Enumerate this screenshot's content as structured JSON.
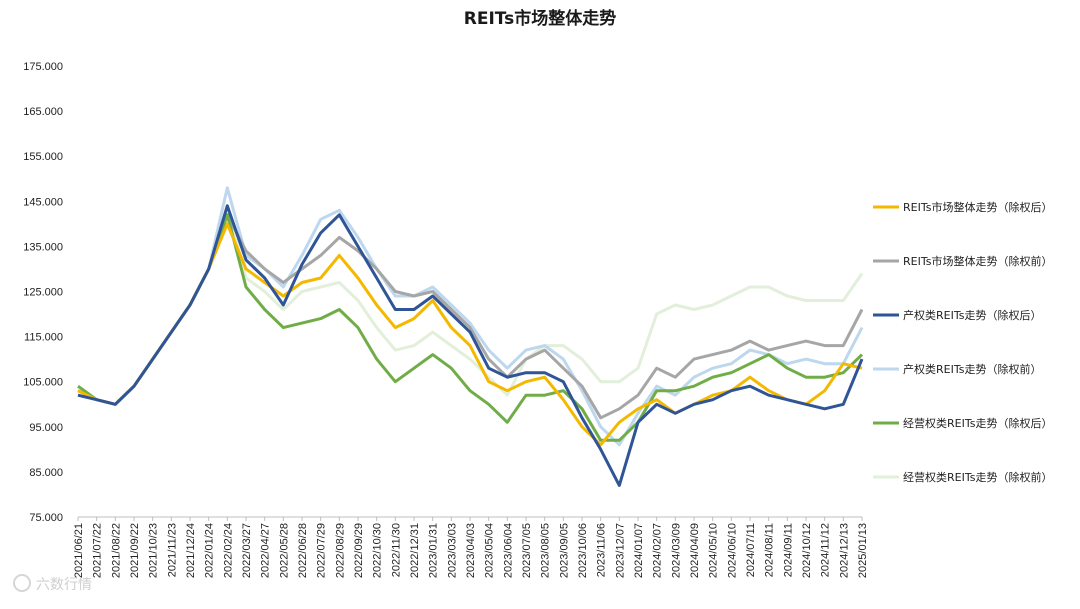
{
  "chart_data": {
    "type": "line",
    "title": "REITs市场整体走势",
    "ylim": [
      75,
      175
    ],
    "yticks": [
      "75.000",
      "85.000",
      "95.000",
      "105.000",
      "115.000",
      "125.000",
      "135.000",
      "145.000",
      "155.000",
      "165.000",
      "175.000"
    ],
    "xticks": [
      "2021/06/21",
      "2021/07/22",
      "2021/08/22",
      "2021/09/22",
      "2021/10/23",
      "2021/11/23",
      "2021/12/24",
      "2022/01/24",
      "2022/02/24",
      "2022/03/27",
      "2022/04/27",
      "2022/05/28",
      "2022/06/28",
      "2022/07/29",
      "2022/08/29",
      "2022/09/29",
      "2022/10/30",
      "2022/11/30",
      "2022/12/31",
      "2023/01/31",
      "2023/03/03",
      "2023/04/03",
      "2023/05/04",
      "2023/06/04",
      "2023/07/05",
      "2023/08/05",
      "2023/09/05",
      "2023/10/06",
      "2023/11/06",
      "2023/12/07",
      "2024/01/07",
      "2024/02/07",
      "2024/03/09",
      "2024/04/09",
      "2024/05/10",
      "2024/06/10",
      "2024/07/11",
      "2024/08/11",
      "2024/09/11",
      "2024/10/12",
      "2024/11/12",
      "2024/12/13",
      "2025/01/13"
    ],
    "grid": false,
    "legend_position": "right",
    "series": [
      {
        "name": "REITs市场整体走势（除权后）",
        "color": "#f5b800",
        "width": 3,
        "values": [
          103,
          101,
          100,
          104,
          110,
          116,
          122,
          130,
          140,
          130,
          127,
          124,
          127,
          128,
          133,
          128,
          122,
          117,
          119,
          123,
          117,
          113,
          105,
          103,
          105,
          106,
          101,
          95,
          91,
          96,
          99,
          101,
          98,
          100,
          102,
          103,
          106,
          103,
          101,
          100,
          103,
          109,
          108
        ]
      },
      {
        "name": "REITs市场整体走势（除权前）",
        "color": "#a6a6a6",
        "width": 3,
        "values": [
          103,
          101,
          100,
          104,
          110,
          116,
          122,
          130,
          142,
          134,
          130,
          127,
          130,
          133,
          137,
          134,
          130,
          125,
          124,
          125,
          121,
          117,
          110,
          106,
          110,
          112,
          108,
          104,
          97,
          99,
          102,
          108,
          106,
          110,
          111,
          112,
          114,
          112,
          113,
          114,
          113,
          113,
          121
        ]
      },
      {
        "name": "产权类REITs走势（除权后）",
        "color": "#2f5597",
        "width": 3,
        "values": [
          102,
          101,
          100,
          104,
          110,
          116,
          122,
          130,
          144,
          132,
          128,
          122,
          131,
          138,
          142,
          135,
          128,
          121,
          121,
          124,
          120,
          116,
          108,
          106,
          107,
          107,
          105,
          97,
          90,
          82,
          96,
          100,
          98,
          100,
          101,
          103,
          104,
          102,
          101,
          100,
          99,
          100,
          110
        ]
      },
      {
        "name": "产权类REITs走势（除权前）",
        "color": "#bdd7ee",
        "width": 3,
        "values": [
          102,
          101,
          100,
          104,
          110,
          116,
          122,
          130,
          148,
          133,
          130,
          126,
          133,
          141,
          143,
          137,
          130,
          124,
          124,
          126,
          122,
          118,
          112,
          108,
          112,
          113,
          110,
          103,
          95,
          91,
          98,
          104,
          102,
          106,
          108,
          109,
          112,
          111,
          109,
          110,
          109,
          109,
          117
        ]
      },
      {
        "name": "经营权类REITs走势（除权后）",
        "color": "#70ad47",
        "width": 3,
        "values": [
          104,
          101,
          100,
          104,
          110,
          116,
          122,
          130,
          142,
          126,
          121,
          117,
          118,
          119,
          121,
          117,
          110,
          105,
          108,
          111,
          108,
          103,
          100,
          96,
          102,
          102,
          103,
          99,
          92,
          92,
          96,
          103,
          103,
          104,
          106,
          107,
          109,
          111,
          108,
          106,
          106,
          107,
          111
        ]
      },
      {
        "name": "经营权类REITs走势（除权前）",
        "color": "#e2efda",
        "width": 3,
        "values": [
          104,
          101,
          100,
          104,
          110,
          116,
          122,
          130,
          144,
          128,
          125,
          121,
          125,
          126,
          127,
          123,
          117,
          112,
          113,
          116,
          113,
          110,
          106,
          102,
          110,
          113,
          113,
          110,
          105,
          105,
          108,
          120,
          122,
          121,
          122,
          124,
          126,
          126,
          124,
          123,
          123,
          123,
          129
        ]
      }
    ]
  },
  "watermark": "六数行情"
}
